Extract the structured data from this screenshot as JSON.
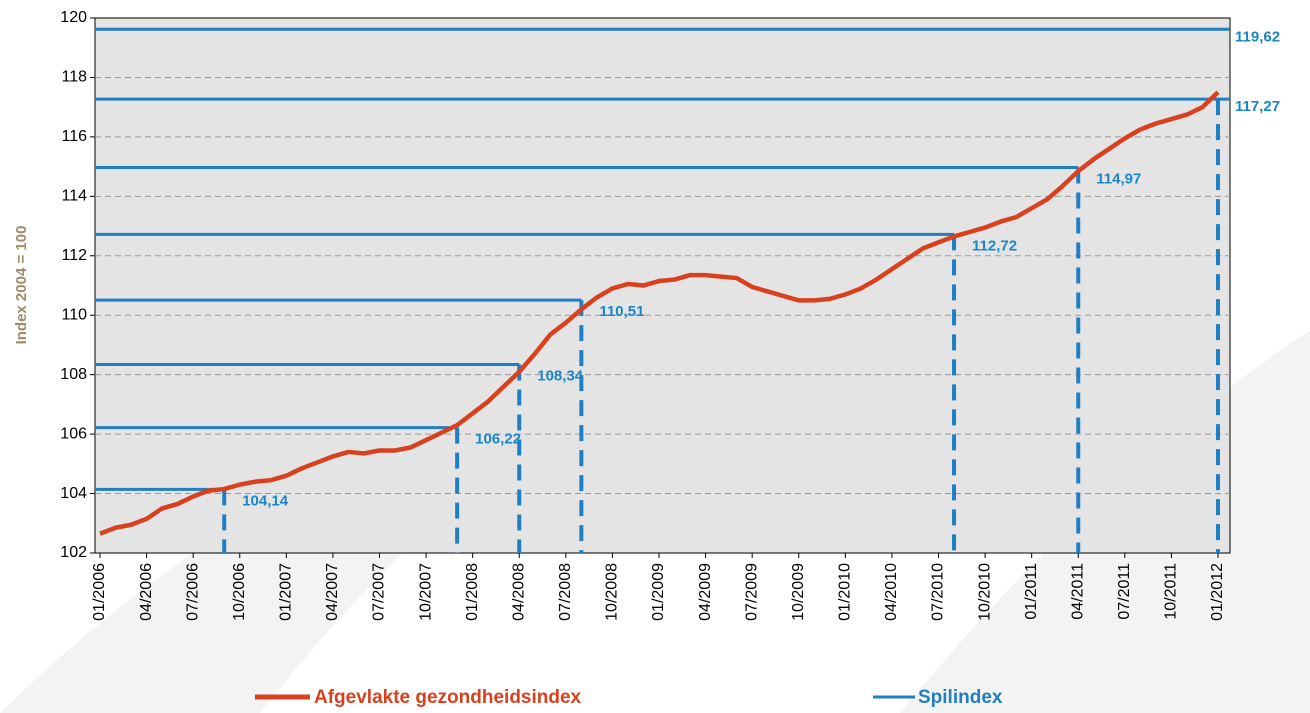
{
  "chart_data": {
    "type": "line",
    "y_label": "Index 2004 = 100",
    "categories": [
      "01/2006",
      null,
      null,
      "04/2006",
      null,
      null,
      "07/2006",
      null,
      null,
      "10/2006",
      null,
      null,
      "01/2007",
      null,
      null,
      "04/2007",
      null,
      null,
      "07/2007",
      null,
      null,
      "10/2007",
      null,
      null,
      "01/2008",
      null,
      null,
      "04/2008",
      null,
      null,
      "07/2008",
      null,
      null,
      "10/2008",
      null,
      null,
      "01/2009",
      null,
      null,
      "04/2009",
      null,
      null,
      "07/2009",
      null,
      null,
      "10/2009",
      null,
      null,
      "01/2010",
      null,
      null,
      "04/2010",
      null,
      null,
      "07/2010",
      null,
      null,
      "10/2010",
      null,
      null,
      "01/2011",
      null,
      null,
      "04/2011",
      null,
      null,
      "07/2011",
      null,
      null,
      "10/2011",
      null,
      null,
      "01/2012"
    ],
    "series": [
      {
        "name": "Afgevlakte gezondheidsindex",
        "color": "#d9411e",
        "values": [
          102.65,
          102.85,
          102.95,
          103.15,
          103.5,
          103.65,
          103.9,
          104.1,
          104.15,
          104.3,
          104.4,
          104.45,
          104.6,
          104.85,
          105.05,
          105.25,
          105.4,
          105.35,
          105.45,
          105.45,
          105.55,
          105.8,
          106.05,
          106.3,
          106.7,
          107.1,
          107.6,
          108.1,
          108.7,
          109.35,
          109.75,
          110.2,
          110.6,
          110.9,
          111.05,
          111.0,
          111.15,
          111.2,
          111.35,
          111.35,
          111.3,
          111.25,
          110.95,
          110.8,
          110.65,
          110.5,
          110.5,
          110.55,
          110.7,
          110.9,
          111.2,
          111.55,
          111.9,
          112.25,
          112.45,
          112.65,
          112.8,
          112.95,
          113.15,
          113.3,
          113.6,
          113.9,
          114.35,
          114.85,
          115.25,
          115.6,
          115.95,
          116.25,
          116.45,
          116.6,
          116.75,
          117.0,
          117.5
        ]
      },
      {
        "name": "Spilindex",
        "color": "#1f7fc1",
        "values": [
          null,
          null,
          null,
          null,
          null,
          null,
          null,
          null,
          104.14,
          null,
          null,
          null,
          null,
          null,
          null,
          null,
          null,
          null,
          null,
          null,
          null,
          null,
          null,
          106.22,
          null,
          null,
          null,
          108.34,
          null,
          null,
          null,
          110.51,
          null,
          null,
          null,
          null,
          null,
          null,
          null,
          null,
          null,
          null,
          null,
          null,
          null,
          null,
          null,
          null,
          null,
          null,
          null,
          null,
          null,
          null,
          null,
          112.72,
          null,
          null,
          null,
          null,
          null,
          null,
          null,
          114.97,
          null,
          null,
          null,
          null,
          null,
          null,
          null,
          null,
          117.27
        ],
        "value_labels": [
          null,
          null,
          null,
          null,
          null,
          null,
          null,
          null,
          "104,14",
          null,
          null,
          null,
          null,
          null,
          null,
          null,
          null,
          null,
          null,
          null,
          null,
          null,
          null,
          "106,22",
          null,
          null,
          null,
          "108,34",
          null,
          null,
          null,
          "110,51",
          null,
          null,
          null,
          null,
          null,
          null,
          null,
          null,
          null,
          null,
          null,
          null,
          null,
          null,
          null,
          null,
          null,
          null,
          null,
          null,
          null,
          null,
          null,
          "112,72",
          null,
          null,
          null,
          null,
          null,
          null,
          null,
          "114,97",
          null,
          null,
          null,
          null,
          null,
          null,
          null,
          null,
          "117,27"
        ]
      }
    ],
    "annotations": [
      {
        "value": 119.62,
        "label": "119,62"
      }
    ],
    "ylim": [
      102,
      120
    ],
    "yticks": [
      102,
      104,
      106,
      108,
      110,
      112,
      114,
      116,
      118,
      120
    ],
    "grid": true
  }
}
